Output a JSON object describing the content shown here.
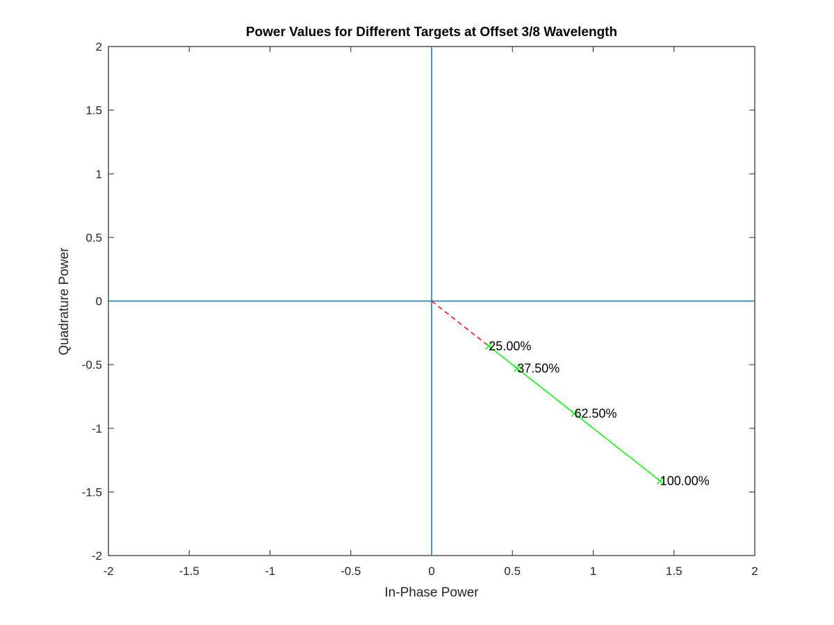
{
  "chart_data": {
    "type": "line",
    "title": "Power Values for Different Targets at Offset 3/8 Wavelength",
    "xlabel": "In-Phase Power",
    "ylabel": "Quadrature Power",
    "xlim": [
      -2,
      2
    ],
    "ylim": [
      -2,
      2
    ],
    "xticks": [
      -2,
      -1.5,
      -1,
      -0.5,
      0,
      0.5,
      1,
      1.5,
      2
    ],
    "yticks": [
      -2,
      -1.5,
      -1,
      -0.5,
      0,
      0.5,
      1,
      1.5,
      2
    ],
    "xtick_labels": [
      "-2",
      "-1.5",
      "-1",
      "-0.5",
      "0",
      "0.5",
      "1",
      "1.5",
      "2"
    ],
    "ytick_labels": [
      "-2",
      "-1.5",
      "-1",
      "-0.5",
      "0",
      "0.5",
      "1",
      "1.5",
      "2"
    ],
    "grid": false,
    "legend": "none",
    "reference_lines": [
      {
        "orientation": "vertical",
        "value": 0,
        "color": "#0072bd"
      },
      {
        "orientation": "horizontal",
        "value": 0,
        "color": "#0072bd"
      }
    ],
    "series": [
      {
        "style": "dashed",
        "color": "#ff0000",
        "x": [
          0,
          0.354
        ],
        "y": [
          0,
          -0.354
        ]
      },
      {
        "style": "solid",
        "marker": "x",
        "color": "#00ff00",
        "x": [
          0.354,
          0.53,
          0.884,
          1.414
        ],
        "y": [
          -0.354,
          -0.53,
          -0.884,
          -1.414
        ],
        "point_labels": [
          "25.00%",
          "37.50%",
          "62.50%",
          "100.00%"
        ]
      }
    ]
  }
}
